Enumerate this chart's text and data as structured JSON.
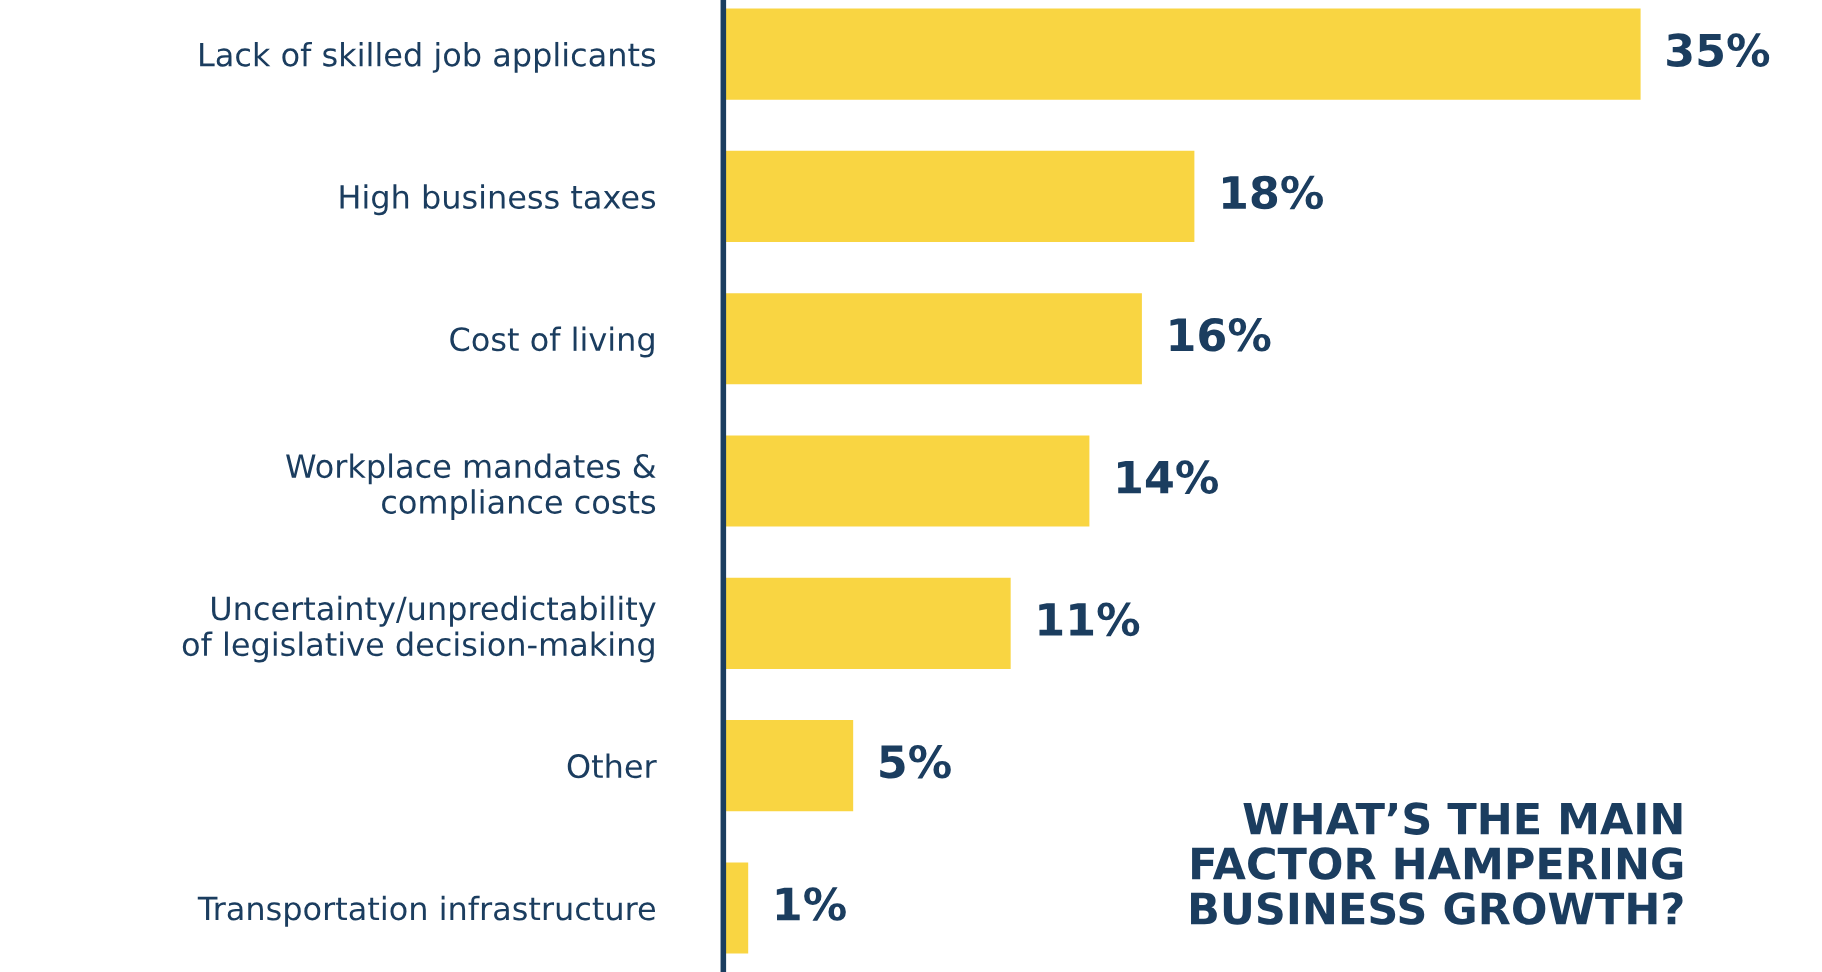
{
  "chart_data": {
    "type": "bar",
    "orientation": "horizontal",
    "title": "WHAT’S THE MAIN\nFACTOR HAMPERING\nBUSINESS GROWTH?",
    "categories": [
      "Lack of skilled job applicants",
      "High business taxes",
      "Cost of living",
      "Workplace mandates &\ncompliance costs",
      "Uncertainty/unpredictability\nof legislative decision-making",
      "Other",
      "Transportation infrastructure"
    ],
    "values": [
      35,
      18,
      16,
      14,
      11,
      5,
      1
    ],
    "value_labels": [
      "35%",
      "18%",
      "16%",
      "14%",
      "11%",
      "5%",
      "1%"
    ],
    "color": "#f9d542",
    "grid": false,
    "legend": false
  }
}
